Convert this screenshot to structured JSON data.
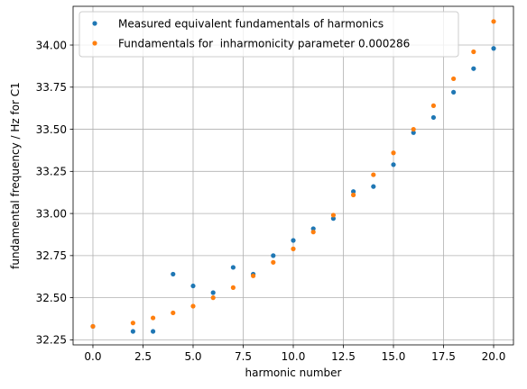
{
  "chart_data": {
    "type": "scatter",
    "xlabel": "harmonic number",
    "ylabel": "fundamental frequency / Hz for C1",
    "xlim": [
      -0.99,
      20.99
    ],
    "ylim": [
      32.22,
      34.23
    ],
    "x_ticks": [
      0.0,
      2.5,
      5.0,
      7.5,
      10.0,
      12.5,
      15.0,
      17.5,
      20.0
    ],
    "x_tick_labels": [
      "0.0",
      "2.5",
      "5.0",
      "7.5",
      "10.0",
      "12.5",
      "15.0",
      "17.5",
      "20.0"
    ],
    "y_ticks": [
      32.25,
      32.5,
      32.75,
      33.0,
      33.25,
      33.5,
      33.75,
      34.0
    ],
    "y_tick_labels": [
      "32.25",
      "32.50",
      "32.75",
      "33.00",
      "33.25",
      "33.50",
      "33.75",
      "34.00"
    ],
    "grid": true,
    "legend_position": "top-left",
    "series": [
      {
        "name": "Measured equivalent fundamentals of harmonics",
        "color": "#1f77b4",
        "x": [
          0,
          2,
          3,
          4,
          5,
          6,
          7,
          8,
          9,
          10,
          11,
          12,
          13,
          14,
          15,
          16,
          17,
          18,
          19,
          20
        ],
        "y": [
          32.33,
          32.3,
          32.3,
          32.64,
          32.57,
          32.53,
          32.68,
          32.64,
          32.75,
          32.84,
          32.91,
          32.97,
          33.13,
          33.16,
          33.29,
          33.48,
          33.57,
          33.72,
          33.86,
          33.98
        ]
      },
      {
        "name": "Fundamentals for  inharmonicity parameter 0.000286",
        "color": "#ff7f0e",
        "x": [
          0,
          2,
          3,
          4,
          5,
          6,
          7,
          8,
          9,
          10,
          11,
          12,
          13,
          14,
          15,
          16,
          17,
          18,
          19,
          20
        ],
        "y": [
          32.33,
          32.35,
          32.38,
          32.41,
          32.45,
          32.5,
          32.56,
          32.63,
          32.71,
          32.79,
          32.89,
          32.99,
          33.11,
          33.23,
          33.36,
          33.5,
          33.64,
          33.8,
          33.96,
          34.14
        ]
      }
    ]
  }
}
